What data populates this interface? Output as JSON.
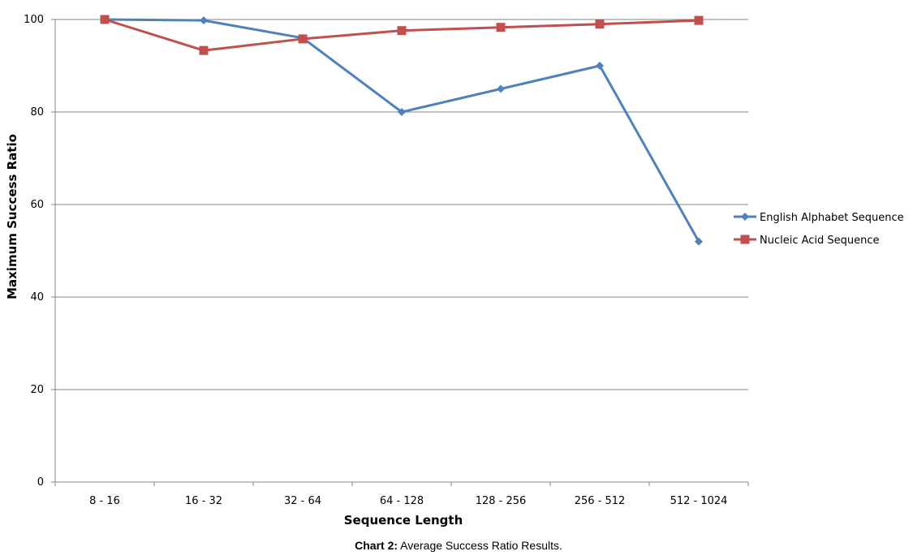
{
  "chart_data": {
    "type": "line",
    "xlabel": "Sequence Length",
    "ylabel": "Maximum Success Ratio",
    "categories": [
      "8 - 16",
      "16 - 32",
      "32 - 64",
      "64 - 128",
      "128 - 256",
      "256 - 512",
      "512 - 1024"
    ],
    "ylim": [
      0,
      100
    ],
    "yticks": [
      0,
      20,
      40,
      60,
      80,
      100
    ],
    "grid": true,
    "legend_position": "right",
    "series": [
      {
        "name": "English Alphabet Sequence",
        "color": "#4F81BD",
        "marker": "diamond",
        "values": [
          100,
          99.8,
          96,
          80,
          85,
          90,
          52
        ]
      },
      {
        "name": "Nucleic Acid Sequence",
        "color": "#C0504D",
        "marker": "square",
        "values": [
          100,
          93.3,
          95.8,
          97.6,
          98.3,
          99,
          99.8
        ]
      }
    ]
  },
  "caption": {
    "label": "Chart 2:",
    "text": " Average Success Ratio Results."
  }
}
